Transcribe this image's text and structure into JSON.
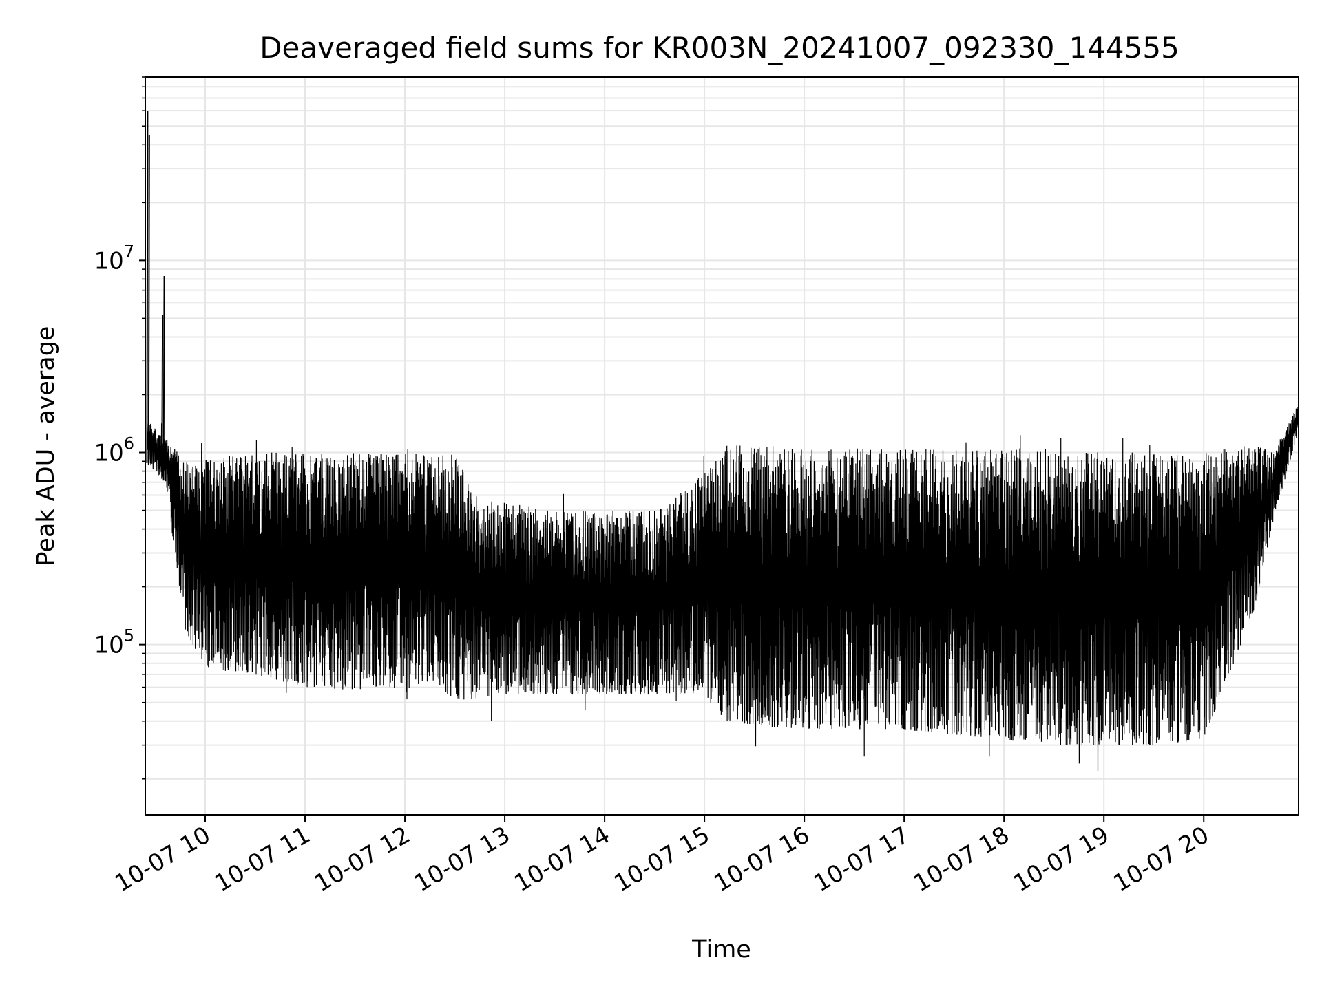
{
  "chart_data": {
    "type": "line",
    "title": "Deaveraged field sums for KR003N_20241007_092330_144555",
    "xlabel": "Time",
    "ylabel": "Peak ADU - average",
    "x_range": [
      "2024-10-07 09:24",
      "2024-10-07 20:57"
    ],
    "ylim": [
      13000,
      900000
    ],
    "ylim_max": 90000000,
    "yscale": "log",
    "grid": true,
    "series_color": "#000000",
    "grid_color": "#e6e6e6",
    "x_ticks": [
      {
        "label": "10-07 10",
        "time": "2024-10-07 10:00"
      },
      {
        "label": "10-07 11",
        "time": "2024-10-07 11:00"
      },
      {
        "label": "10-07 12",
        "time": "2024-10-07 12:00"
      },
      {
        "label": "10-07 13",
        "time": "2024-10-07 13:00"
      },
      {
        "label": "10-07 14",
        "time": "2024-10-07 14:00"
      },
      {
        "label": "10-07 15",
        "time": "2024-10-07 15:00"
      },
      {
        "label": "10-07 16",
        "time": "2024-10-07 16:00"
      },
      {
        "label": "10-07 17",
        "time": "2024-10-07 17:00"
      },
      {
        "label": "10-07 18",
        "time": "2024-10-07 18:00"
      },
      {
        "label": "10-07 19",
        "time": "2024-10-07 19:00"
      },
      {
        "label": "10-07 20",
        "time": "2024-10-07 20:00"
      }
    ],
    "y_ticks": [
      {
        "base": "10",
        "exp": "5",
        "value": 100000
      },
      {
        "base": "10",
        "exp": "6",
        "value": 1000000
      },
      {
        "base": "10",
        "exp": "7",
        "value": 10000000
      }
    ],
    "envelope_hours": [
      9.4,
      9.6,
      9.8,
      10.0,
      10.5,
      11.0,
      11.5,
      12.0,
      12.3,
      12.5,
      12.7,
      13.0,
      13.5,
      14.0,
      14.5,
      15.0,
      15.2,
      15.5,
      16.0,
      16.5,
      17.0,
      17.5,
      18.0,
      18.5,
      19.0,
      19.5,
      20.0,
      20.3,
      20.5,
      20.7,
      20.95
    ],
    "envelope_upper": [
      1500000,
      1200000,
      900000,
      950000,
      1000000,
      1000000,
      1000000,
      1000000,
      1000000,
      1000000,
      600000,
      550000,
      500000,
      500000,
      500000,
      800000,
      1100000,
      1100000,
      1050000,
      1050000,
      1050000,
      1050000,
      1050000,
      1050000,
      1000000,
      1000000,
      1000000,
      1100000,
      1100000,
      1000000,
      1800000
    ],
    "envelope_lower": [
      900000,
      700000,
      120000,
      75000,
      70000,
      60000,
      58000,
      60000,
      65000,
      50000,
      52000,
      55000,
      55000,
      55000,
      55000,
      55000,
      40000,
      38000,
      36000,
      36000,
      36000,
      34000,
      32000,
      30000,
      30000,
      30000,
      32000,
      80000,
      150000,
      450000,
      1300000
    ],
    "peaks": [
      {
        "time": "2024-10-07 09:25",
        "value": 60000000
      },
      {
        "time": "2024-10-07 09:26",
        "value": 45000000
      },
      {
        "time": "2024-10-07 09:35",
        "value": 8300000
      },
      {
        "time": "2024-10-07 09:34",
        "value": 5200000
      }
    ]
  }
}
